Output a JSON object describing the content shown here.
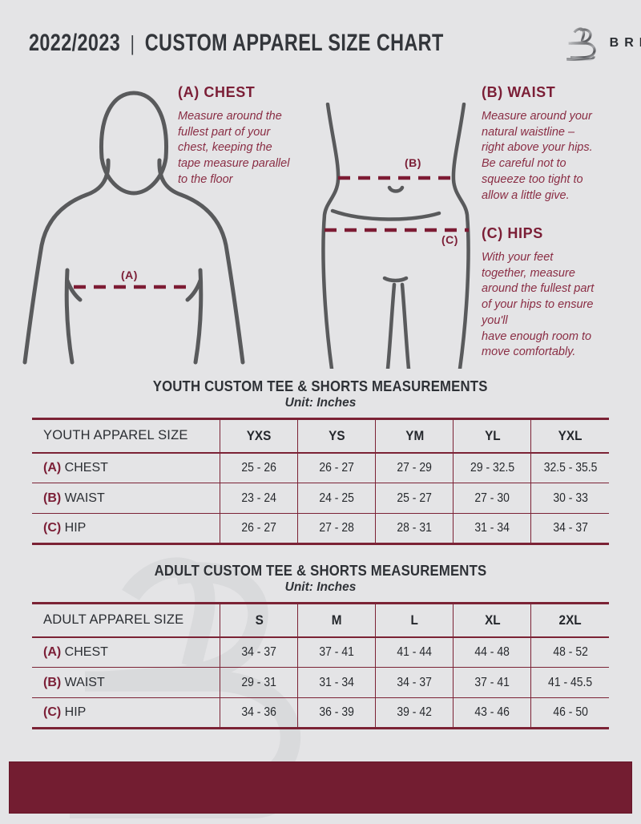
{
  "header": {
    "year": "2022/2023",
    "divider": "|",
    "title": "CUSTOM APPAREL SIZE CHART",
    "brand": "BREAKAWAY"
  },
  "diagram": {
    "chest": {
      "marker": "(A)",
      "heading": "(A) CHEST",
      "description": "Measure around the\nfullest part of your\nchest, keeping the\ntape measure parallel\nto the floor"
    },
    "waist": {
      "marker": "(B)",
      "heading": "(B) WAIST",
      "description": "Measure around your\nnatural waistline –\nright above your hips.\nBe careful not to\nsqueeze too tight to\nallow a little give."
    },
    "hips": {
      "marker": "(C)",
      "heading": "(C) HIPS",
      "description": "With your feet\ntogether, measure\naround the fullest part\nof your hips to ensure\nyou'll\nhave enough room to\nmove comfortably."
    }
  },
  "youth_table": {
    "title": "YOUTH CUSTOM TEE & SHORTS MEASUREMENTS",
    "subtitle": "Unit: Inches",
    "columns": [
      "YOUTH APPAREL SIZE",
      "YXS",
      "YS",
      "YM",
      "YL",
      "YXL"
    ],
    "rows": [
      {
        "prefix": "(A)",
        "label": "CHEST",
        "values": [
          "25 - 26",
          "26 - 27",
          "27 - 29",
          "29 - 32.5",
          "32.5 - 35.5"
        ]
      },
      {
        "prefix": "(B)",
        "label": "WAIST",
        "values": [
          "23 - 24",
          "24 - 25",
          "25 - 27",
          "27 - 30",
          "30 - 33"
        ]
      },
      {
        "prefix": "(C)",
        "label": "HIP",
        "values": [
          "26 - 27",
          "27 - 28",
          "28 - 31",
          "31 - 34",
          "34 - 37"
        ]
      }
    ]
  },
  "adult_table": {
    "title": "ADULT CUSTOM TEE & SHORTS MEASUREMENTS",
    "subtitle": "Unit: Inches",
    "columns": [
      "ADULT APPAREL SIZE",
      "S",
      "M",
      "L",
      "XL",
      "2XL"
    ],
    "rows": [
      {
        "prefix": "(A)",
        "label": "CHEST",
        "values": [
          "34 - 37",
          "37 - 41",
          "41 - 44",
          "44 - 48",
          "48 - 52"
        ]
      },
      {
        "prefix": "(B)",
        "label": "WAIST",
        "values": [
          "29 - 31",
          "31 - 34",
          "34 - 37",
          "37 - 41",
          "41 - 45.5"
        ]
      },
      {
        "prefix": "(C)",
        "label": "HIP",
        "values": [
          "34 - 36",
          "36 - 39",
          "39 - 42",
          "43 - 46",
          "46 - 50"
        ]
      }
    ]
  },
  "colors": {
    "background": "#e4e4e6",
    "maroon_heading": "#7b1e36",
    "maroon_body_text": "#8a2d44",
    "table_border": "#7b2235",
    "footer_bar": "#731d31",
    "dark_text": "#2d3035",
    "figure_outline": "#595a5c",
    "watermark": "#d9dadc"
  }
}
